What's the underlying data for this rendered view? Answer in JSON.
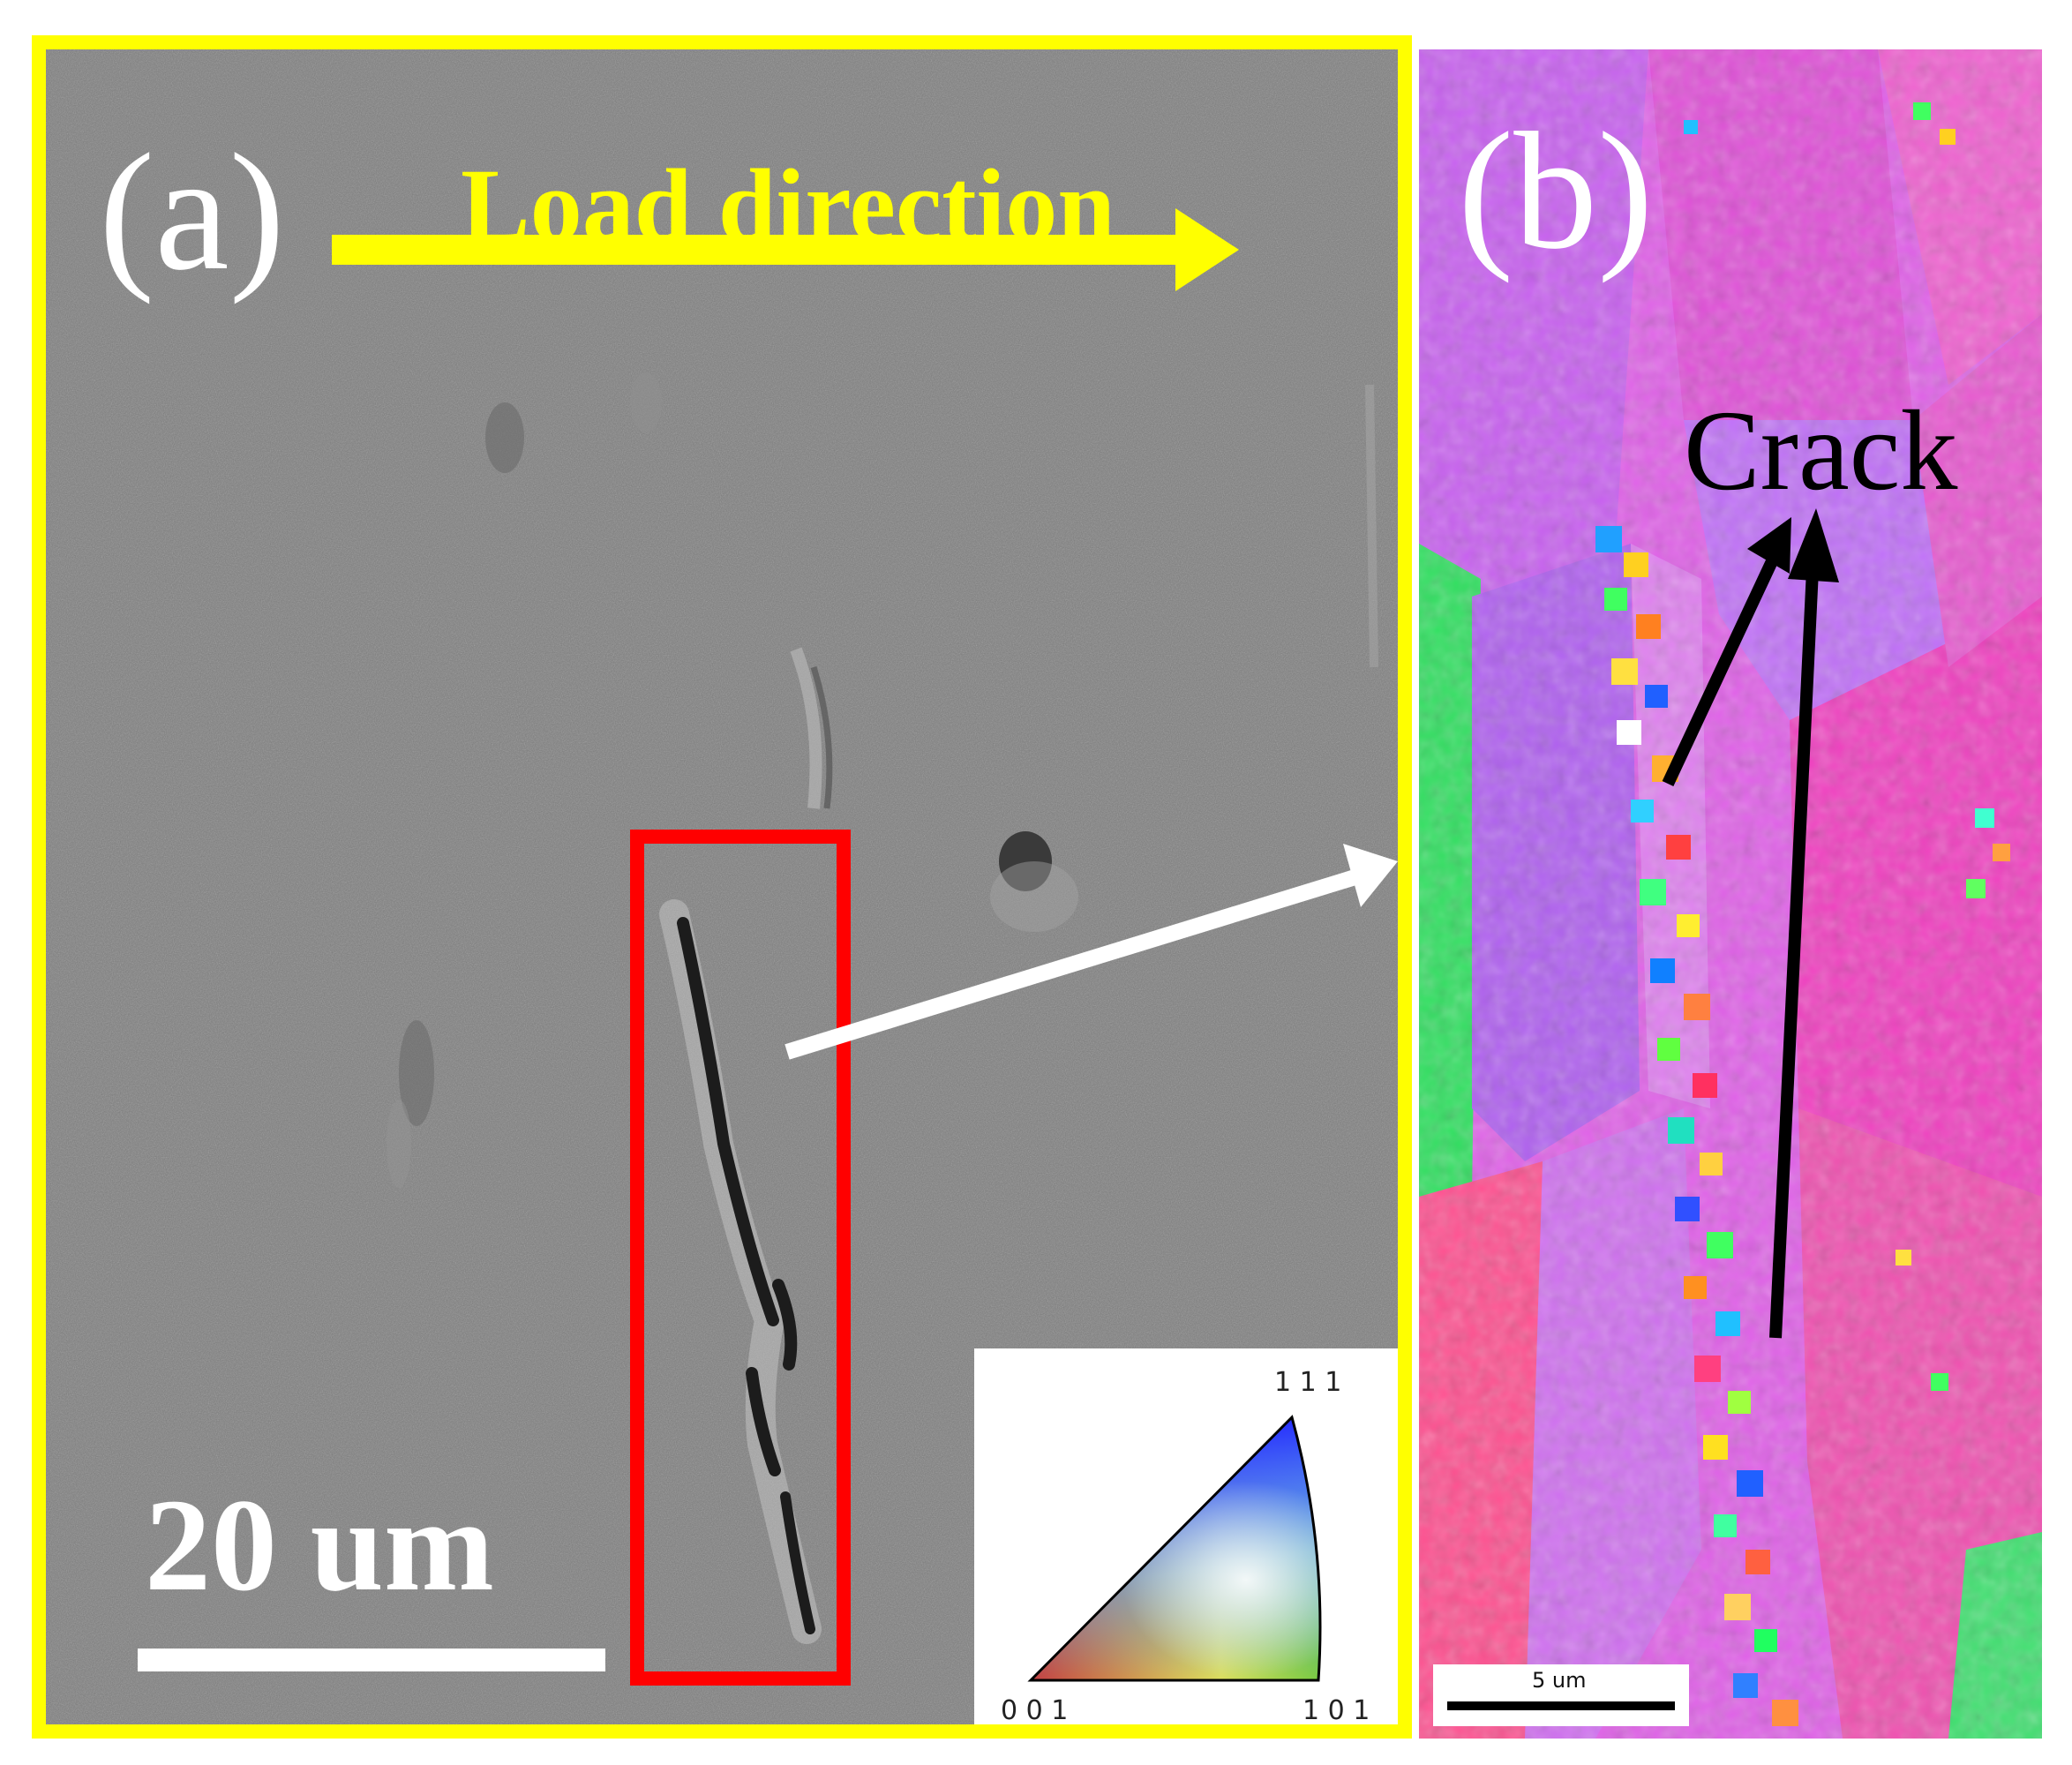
{
  "panel_a": {
    "label": "(a)",
    "load_direction": "Load direction",
    "scale_bar": "20 um",
    "colors": {
      "frame": "#ffff00",
      "arrow": "#ffff00",
      "highlight_box": "#ff0000",
      "pointer_arrow": "#ffffff"
    }
  },
  "ipf_legend": {
    "corner_111": "1 1 1",
    "corner_001": "0 0 1",
    "corner_101": "1 0 1"
  },
  "panel_b": {
    "label": "(b)",
    "annotation": "Crack",
    "scale_bar": "5 um",
    "colors": {
      "arrows": "#000000"
    }
  }
}
